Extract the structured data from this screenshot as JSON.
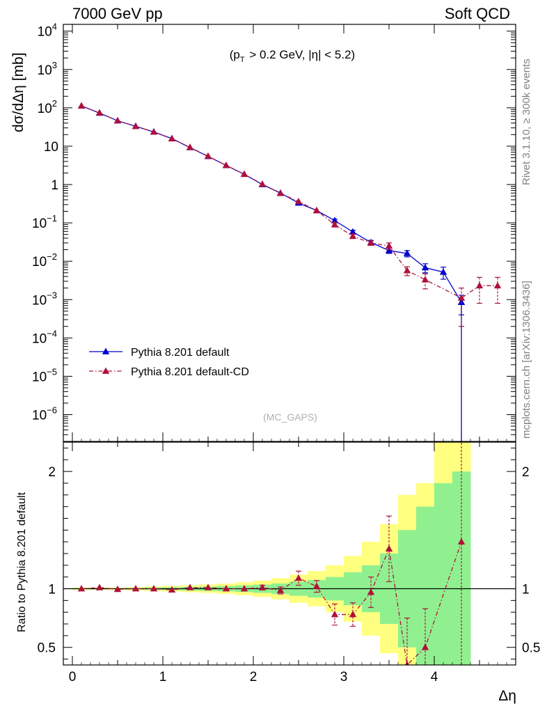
{
  "header": {
    "left": "7000 GeV pp",
    "right": "Soft QCD"
  },
  "side_labels": {
    "rivet": "Rivet 3.1.10, ≥ 300k events",
    "mcplots": "mcplots.cern.ch [arXiv:1306.3436]"
  },
  "chart_data": [
    {
      "type": "line",
      "title": "",
      "annotation": "(p_T > 0.2 GeV, |η| < 5.2)",
      "watermark": "(MC_GAPS)",
      "ylabel": "dσ/dΔη [mb]",
      "xlabel": "Δη",
      "xlim": [
        -0.1,
        4.9
      ],
      "ylim": [
        2e-07,
        15000
      ],
      "yscale": "log",
      "yticks": [
        {
          "label": "10",
          "sup": "4"
        },
        {
          "label": "10",
          "sup": "3"
        },
        {
          "label": "10",
          "sup": "2"
        },
        {
          "label": "10",
          "sup": ""
        },
        {
          "label": "1",
          "sup": ""
        },
        {
          "label": "10",
          "sup": "−1"
        },
        {
          "label": "10",
          "sup": "−2"
        },
        {
          "label": "10",
          "sup": "−3"
        },
        {
          "label": "10",
          "sup": "−4"
        },
        {
          "label": "10",
          "sup": "−5"
        },
        {
          "label": "10",
          "sup": "−6"
        }
      ],
      "legend_position": "bottom-left",
      "series": [
        {
          "name": "Pythia 8.201 default",
          "color": "#0000cc",
          "marker": "triangle",
          "line": "solid",
          "x": [
            0.1,
            0.3,
            0.5,
            0.7,
            0.9,
            1.1,
            1.3,
            1.5,
            1.7,
            1.9,
            2.1,
            2.3,
            2.5,
            2.7,
            2.9,
            3.1,
            3.3,
            3.5,
            3.7,
            3.9,
            4.1,
            4.3
          ],
          "y": [
            112,
            73,
            46,
            33,
            23.5,
            15.8,
            9.2,
            5.4,
            3.15,
            1.85,
            1.0,
            0.6,
            0.33,
            0.21,
            0.115,
            0.058,
            0.031,
            0.019,
            0.016,
            0.0068,
            0.0052,
            0.00085
          ],
          "err": [
            0,
            0,
            0,
            0,
            0,
            0,
            0,
            0,
            0,
            0,
            0,
            0,
            0,
            0,
            0.01,
            0.006,
            0.004,
            0.003,
            0.003,
            0.0018,
            0.0018,
            0.00045
          ]
        },
        {
          "name": "Pythia 8.201 default-CD",
          "color": "#b0103a",
          "marker": "triangle",
          "line": "dashdot",
          "x": [
            0.1,
            0.3,
            0.5,
            0.7,
            0.9,
            1.1,
            1.3,
            1.5,
            1.7,
            1.9,
            2.1,
            2.3,
            2.5,
            2.7,
            2.9,
            3.1,
            3.3,
            3.5,
            3.7,
            3.9,
            4.3,
            4.5,
            4.7
          ],
          "y": [
            112,
            74,
            46,
            33,
            23.5,
            15.6,
            9.3,
            5.5,
            3.15,
            1.86,
            1.02,
            0.59,
            0.36,
            0.21,
            0.09,
            0.045,
            0.03,
            0.025,
            0.0057,
            0.0033,
            0.0011,
            0.0023,
            0.0023
          ],
          "err": [
            0,
            0,
            0,
            0,
            0,
            0,
            0,
            0,
            0,
            0,
            0,
            0,
            0,
            0,
            0.012,
            0.006,
            0.004,
            0.005,
            0.0015,
            0.0014,
            0.0009,
            0.0015,
            0.0015
          ]
        }
      ]
    },
    {
      "type": "line",
      "title": "",
      "ylabel": "Ratio to Pythia 8.201 default",
      "xlabel": "Δη",
      "xlim": [
        -0.1,
        4.9
      ],
      "ylim": [
        0.35,
        2.25
      ],
      "yticks": [
        0.5,
        1,
        2
      ],
      "xticks": [
        0,
        1,
        2,
        3,
        4
      ],
      "uncertainty_bands": {
        "x_edges": [
          0,
          0.2,
          0.4,
          0.6,
          0.8,
          1.0,
          1.2,
          1.4,
          1.6,
          1.8,
          2.0,
          2.2,
          2.4,
          2.6,
          2.8,
          3.0,
          3.2,
          3.4,
          3.6,
          3.8,
          4.0,
          4.2,
          4.4
        ],
        "green_lo": [
          0.995,
          0.995,
          0.995,
          0.993,
          0.99,
          0.988,
          0.985,
          0.982,
          0.978,
          0.972,
          0.965,
          0.955,
          0.94,
          0.925,
          0.9,
          0.86,
          0.8,
          0.7,
          0.5,
          0.3,
          0.1,
          0.0
        ],
        "green_hi": [
          1.005,
          1.005,
          1.005,
          1.007,
          1.01,
          1.012,
          1.015,
          1.018,
          1.022,
          1.028,
          1.035,
          1.045,
          1.06,
          1.075,
          1.1,
          1.14,
          1.2,
          1.3,
          1.5,
          1.7,
          1.9,
          2.0
        ],
        "yellow_lo": [
          0.99,
          0.99,
          0.99,
          0.986,
          0.98,
          0.976,
          0.97,
          0.964,
          0.956,
          0.944,
          0.93,
          0.91,
          0.88,
          0.85,
          0.8,
          0.72,
          0.6,
          0.45,
          0.2,
          0.1,
          0.0,
          0.0
        ],
        "yellow_hi": [
          1.01,
          1.01,
          1.01,
          1.014,
          1.02,
          1.024,
          1.03,
          1.036,
          1.044,
          1.056,
          1.07,
          1.09,
          1.12,
          1.15,
          1.2,
          1.28,
          1.4,
          1.55,
          1.8,
          1.9,
          2.3,
          2.3
        ]
      },
      "series": [
        {
          "name": "Pythia 8.201 default-CD",
          "color": "#b0103a",
          "x": [
            0.1,
            0.3,
            0.5,
            0.7,
            0.9,
            1.1,
            1.3,
            1.5,
            1.7,
            1.9,
            2.1,
            2.3,
            2.5,
            2.7,
            2.9,
            3.1,
            3.3,
            3.5,
            3.7,
            3.9,
            4.3
          ],
          "y": [
            1.0,
            1.01,
            0.995,
            1.0,
            1.0,
            0.99,
            1.01,
            1.01,
            1.0,
            1.0,
            1.01,
            0.985,
            1.09,
            1.02,
            0.78,
            0.78,
            0.97,
            1.34,
            0.35,
            0.5,
            1.4
          ],
          "err": [
            0,
            0,
            0,
            0,
            0,
            0,
            0,
            0,
            0,
            0,
            0.02,
            0.03,
            0.06,
            0.05,
            0.09,
            0.1,
            0.13,
            0.28,
            0.4,
            0.33,
            1.2
          ]
        }
      ]
    }
  ]
}
